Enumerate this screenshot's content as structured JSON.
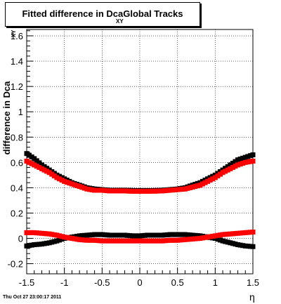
{
  "title": {
    "text": "Fitted difference in DcaGlobal Tracks",
    "subscript": "XY"
  },
  "timestamp": "Thu Oct 27 23:00:17 2011",
  "colors": {
    "series1": "#000000",
    "series2": "#ff0000",
    "grid": "#000000",
    "frame": "#000000"
  },
  "chart_data": {
    "type": "scatter",
    "xlabel": "η",
    "ylabel": "difference in Dca",
    "ylabel_sub": "XY",
    "xlim": [
      -1.5,
      1.5
    ],
    "ylim": [
      -0.28,
      1.65
    ],
    "grid": true,
    "x_ticks": [
      "-1.5",
      "-1",
      "-0.5",
      "0",
      "0.5",
      "1",
      "1.5"
    ],
    "x_tick_values": [
      -1.5,
      -1,
      -0.5,
      0,
      0.5,
      1,
      1.5
    ],
    "y_ticks": [
      "-0.2",
      "0",
      "0.2",
      "0.4",
      "0.6",
      "0.8",
      "1",
      "1.2",
      "1.4",
      "1.6"
    ],
    "y_tick_values": [
      -0.2,
      0,
      0.2,
      0.4,
      0.6,
      0.8,
      1,
      1.2,
      1.4,
      1.6
    ],
    "series": [
      {
        "color": "#000000",
        "x": [
          -1.5,
          -1.4,
          -1.3,
          -1.2,
          -1.1,
          -1.0,
          -0.9,
          -0.8,
          -0.7,
          -0.6,
          -0.5,
          -0.4,
          -0.3,
          -0.2,
          -0.1,
          0.0,
          0.1,
          0.2,
          0.3,
          0.4,
          0.5,
          0.6,
          0.7,
          0.8,
          0.9,
          1.0,
          1.1,
          1.2,
          1.3,
          1.4,
          1.5
        ],
        "y": [
          0.67,
          0.63,
          0.58,
          0.54,
          0.5,
          0.47,
          0.44,
          0.42,
          0.4,
          0.39,
          0.385,
          0.38,
          0.38,
          0.38,
          0.378,
          0.377,
          0.377,
          0.378,
          0.38,
          0.385,
          0.39,
          0.4,
          0.42,
          0.44,
          0.47,
          0.5,
          0.54,
          0.58,
          0.62,
          0.64,
          0.66
        ]
      },
      {
        "color": "#ff0000",
        "x": [
          -1.5,
          -1.4,
          -1.3,
          -1.2,
          -1.1,
          -1.0,
          -0.9,
          -0.8,
          -0.7,
          -0.6,
          -0.5,
          -0.4,
          -0.3,
          -0.2,
          -0.1,
          0.0,
          0.1,
          0.2,
          0.3,
          0.4,
          0.5,
          0.6,
          0.7,
          0.8,
          0.9,
          1.0,
          1.1,
          1.2,
          1.3,
          1.4,
          1.5
        ],
        "y": [
          0.61,
          0.58,
          0.55,
          0.52,
          0.48,
          0.45,
          0.43,
          0.41,
          0.39,
          0.38,
          0.38,
          0.375,
          0.375,
          0.375,
          0.372,
          0.372,
          0.372,
          0.373,
          0.375,
          0.38,
          0.385,
          0.39,
          0.405,
          0.42,
          0.45,
          0.48,
          0.52,
          0.55,
          0.58,
          0.6,
          0.61
        ]
      },
      {
        "color": "#000000",
        "x": [
          -1.5,
          -1.4,
          -1.3,
          -1.2,
          -1.1,
          -1.0,
          -0.9,
          -0.8,
          -0.7,
          -0.6,
          -0.5,
          -0.4,
          -0.3,
          -0.2,
          -0.1,
          0.0,
          0.1,
          0.2,
          0.3,
          0.4,
          0.5,
          0.6,
          0.7,
          0.8,
          0.9,
          1.0,
          1.1,
          1.2,
          1.3,
          1.4,
          1.5
        ],
        "y": [
          -0.06,
          -0.05,
          -0.045,
          -0.035,
          -0.02,
          0.0,
          0.01,
          0.02,
          0.025,
          0.03,
          0.03,
          0.025,
          0.025,
          0.025,
          0.02,
          0.02,
          0.025,
          0.025,
          0.025,
          0.03,
          0.03,
          0.03,
          0.025,
          0.02,
          0.01,
          0.0,
          -0.02,
          -0.035,
          -0.05,
          -0.06,
          -0.065
        ]
      },
      {
        "color": "#ff0000",
        "x": [
          -1.5,
          -1.4,
          -1.3,
          -1.2,
          -1.1,
          -1.0,
          -0.9,
          -0.8,
          -0.7,
          -0.6,
          -0.5,
          -0.4,
          -0.3,
          -0.2,
          -0.1,
          0.0,
          0.1,
          0.2,
          0.3,
          0.4,
          0.5,
          0.6,
          0.7,
          0.8,
          0.9,
          1.0,
          1.1,
          1.2,
          1.3,
          1.4,
          1.5
        ],
        "y": [
          0.045,
          0.045,
          0.04,
          0.035,
          0.025,
          0.01,
          0.0,
          -0.01,
          -0.015,
          -0.015,
          -0.02,
          -0.02,
          -0.02,
          -0.02,
          -0.02,
          -0.02,
          -0.02,
          -0.02,
          -0.02,
          -0.015,
          -0.015,
          -0.01,
          -0.005,
          0.0,
          0.01,
          0.02,
          0.03,
          0.035,
          0.04,
          0.045,
          0.05
        ]
      }
    ]
  }
}
